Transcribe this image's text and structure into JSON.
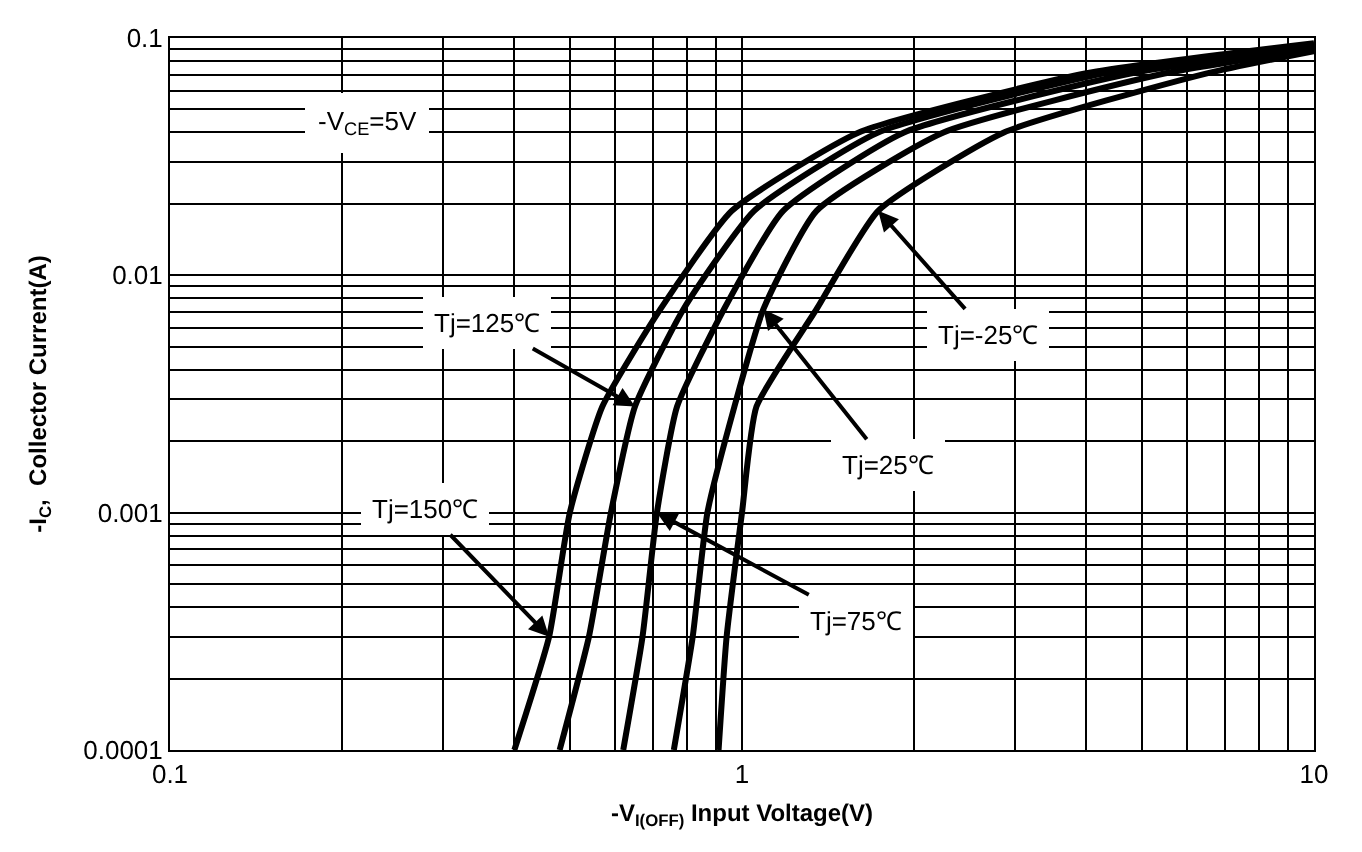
{
  "chart_data": {
    "type": "line",
    "xlabel": "-V$_{I(OFF)}$ Input Voltage(V)",
    "ylabel": "-I$_{C}$,  Collector Current(A)",
    "log": "xy",
    "xlim": [
      0.1,
      10
    ],
    "ylim": [
      0.0001,
      0.1
    ],
    "xticks": [
      0.1,
      1,
      10
    ],
    "yticks": [
      0.0001,
      0.001,
      0.01,
      0.1
    ],
    "grid": true,
    "marker": "none",
    "line_style": "solid",
    "series": [
      {
        "color": "#000000",
        "x": [
          0.4,
          0.46,
          0.5,
          0.57,
          0.72,
          0.96,
          1.6,
          4.0,
          10
        ],
        "values": [
          0.0001,
          0.0003,
          0.001,
          0.0028,
          0.0072,
          0.0187,
          0.04,
          0.071,
          0.095
        ]
      },
      {
        "color": "#000000",
        "x": [
          0.48,
          0.54,
          0.59,
          0.65,
          0.79,
          1.05,
          1.73,
          4.3,
          10
        ],
        "values": [
          0.0001,
          0.0003,
          0.001,
          0.0028,
          0.0072,
          0.0187,
          0.04,
          0.071,
          0.094
        ]
      },
      {
        "color": "#000000",
        "x": [
          0.62,
          0.67,
          0.71,
          0.77,
          0.93,
          1.18,
          1.92,
          4.8,
          10
        ],
        "values": [
          0.0001,
          0.0003,
          0.001,
          0.0028,
          0.0072,
          0.0187,
          0.04,
          0.071,
          0.092
        ]
      },
      {
        "color": "#000000",
        "x": [
          0.76,
          0.82,
          0.87,
          0.97,
          1.09,
          1.35,
          2.25,
          5.5,
          10
        ],
        "values": [
          0.0001,
          0.0003,
          0.001,
          0.0028,
          0.0072,
          0.0187,
          0.04,
          0.071,
          0.09
        ]
      },
      {
        "color": "#000000",
        "x": [
          0.91,
          0.94,
          1.0,
          1.06,
          1.35,
          1.73,
          2.87,
          6.5,
          10
        ],
        "values": [
          0.0001,
          0.0003,
          0.001,
          0.0028,
          0.0072,
          0.0187,
          0.04,
          0.071,
          0.088
        ]
      }
    ],
    "annotations": [
      "-V$_{CE}$=5V",
      {
        "text": "Tj=125℃",
        "x": 0.65,
        "y": 0.0028
      },
      {
        "text": "Tj=150℃",
        "x": 0.46,
        "y": 0.0003
      },
      {
        "text": "Tj=75℃",
        "x": 0.71,
        "y": 0.001
      },
      {
        "text": "Tj=25℃",
        "x": 1.09,
        "y": 0.0072
      },
      {
        "text": "Tj=-25℃",
        "x": 1.73,
        "y": 0.0187
      }
    ]
  }
}
